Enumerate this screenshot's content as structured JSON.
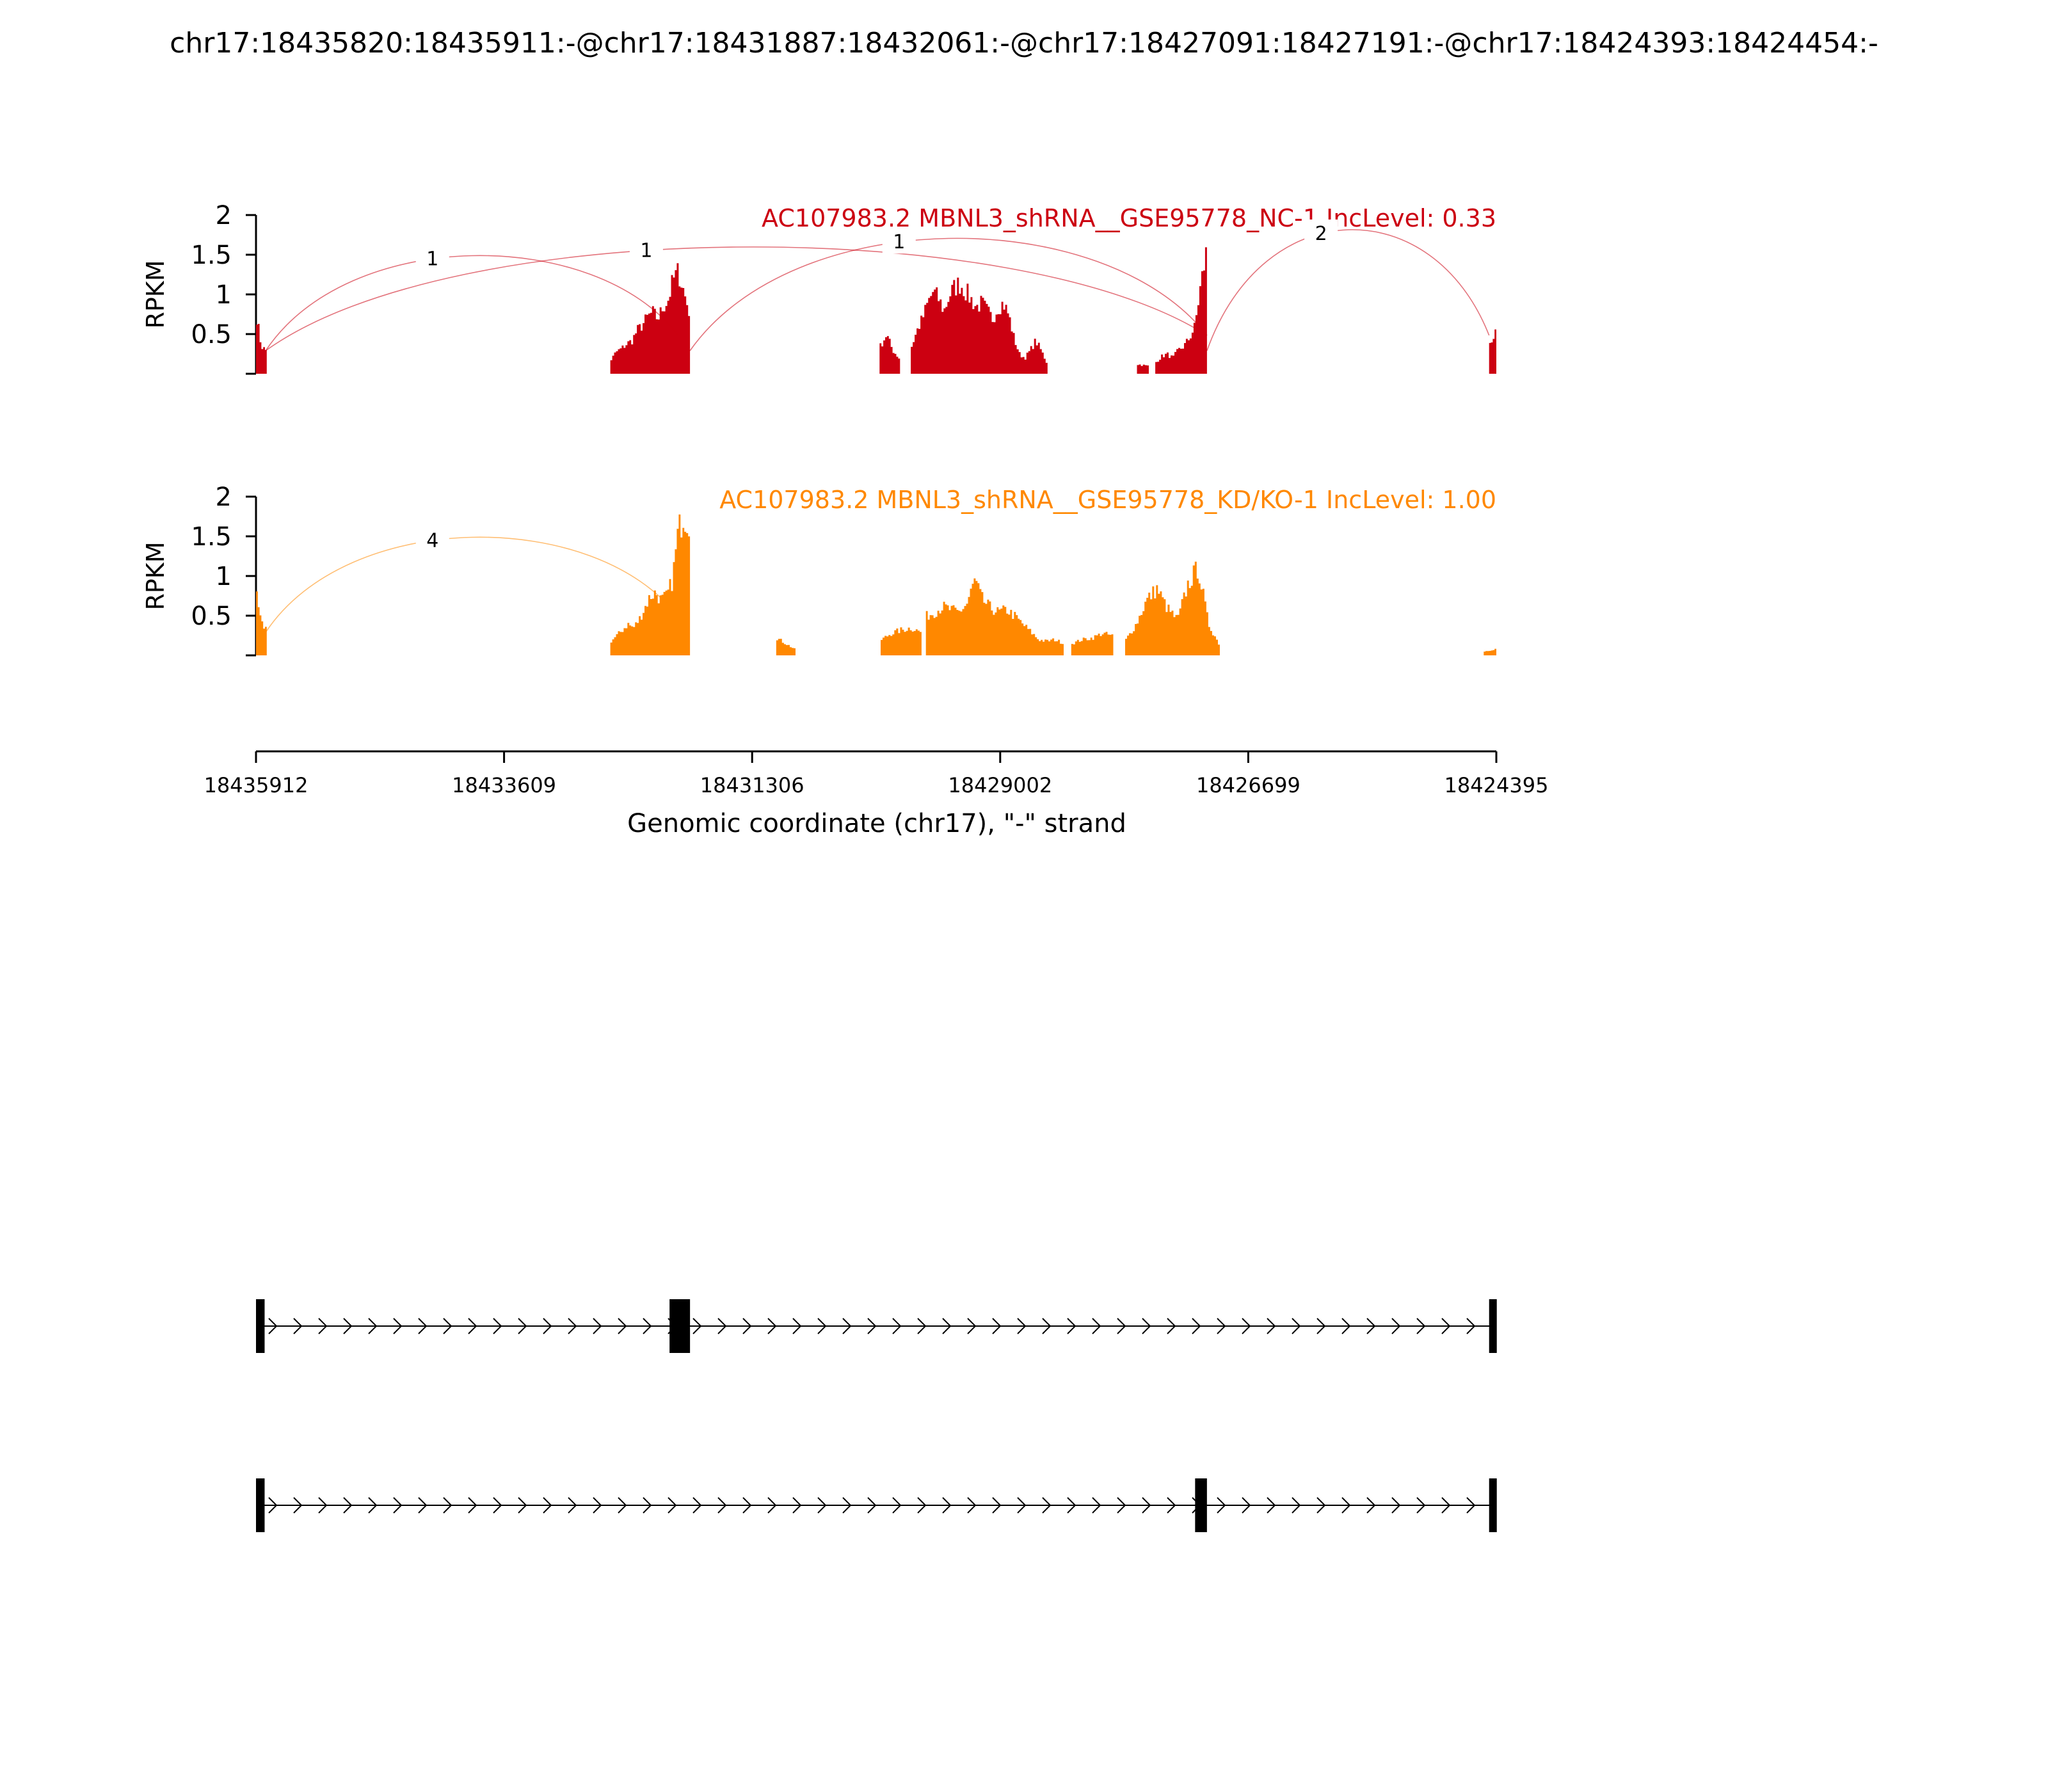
{
  "title": "chr17:18435820:18435911:-@chr17:18431887:18432061:-@chr17:18427091:18427191:-@chr17:18424393:18424454:-",
  "chart_data": {
    "type": "sashimi",
    "x_axis": {
      "label": "Genomic coordinate (chr17), \"-\" strand",
      "start": 18435912,
      "end": 18424395,
      "tick_labels": [
        "18435912",
        "18433609",
        "18431306",
        "18429002",
        "18426699",
        "18424395"
      ]
    },
    "tracks": [
      {
        "name": "AC107983.2 MBNL3_shRNA__GSE95778_NC-1 IncLevel: 0.33",
        "color": "#cc0011",
        "ylabel": "RPKM",
        "ylim": [
          0,
          2
        ],
        "y_tick_labels": [
          "0.5",
          "1",
          "1.5",
          "2"
        ],
        "coverage": [
          {
            "start": 0,
            "end": 100,
            "profile": [
              0.72,
              0.35,
              0.3
            ]
          },
          {
            "start": 3290,
            "end": 4030,
            "profile": [
              0.18,
              0.28,
              0.32,
              0.38,
              0.42,
              0.55,
              0.62,
              0.72,
              0.78,
              0.7,
              0.85,
              0.95,
              1.2,
              1.3,
              1.05,
              0.8
            ]
          },
          {
            "start": 5790,
            "end": 5980,
            "profile": [
              0.35,
              0.5,
              0.3,
              0.2
            ]
          },
          {
            "start": 6080,
            "end": 7350,
            "profile": [
              0.35,
              0.55,
              0.7,
              0.9,
              1.05,
              0.95,
              0.8,
              1.0,
              1.1,
              1.15,
              1.05,
              0.95,
              0.85,
              0.9,
              0.8,
              0.7,
              0.85,
              0.9,
              0.75,
              0.45,
              0.25,
              0.2,
              0.3,
              0.42,
              0.3,
              0.15
            ]
          },
          {
            "start": 8180,
            "end": 8290,
            "profile": [
              0.12,
              0.1
            ]
          },
          {
            "start": 8350,
            "end": 8830,
            "profile": [
              0.15,
              0.22,
              0.25,
              0.2,
              0.3,
              0.35,
              0.45,
              0.6,
              1.1,
              1.52
            ]
          },
          {
            "start": 11450,
            "end": 11517,
            "profile": [
              0.4,
              0.5
            ]
          }
        ],
        "junctions": [
          {
            "from": 90,
            "to": 3920,
            "count": "1"
          },
          {
            "from": 90,
            "to": 8830,
            "count": "1"
          },
          {
            "from": 4030,
            "to": 8830,
            "count": "1"
          },
          {
            "from": 8830,
            "to": 11450,
            "count": "2"
          }
        ]
      },
      {
        "name": "AC107983.2 MBNL3_shRNA__GSE95778_KD/KO-1 IncLevel: 1.00",
        "color": "#ff8800",
        "ylabel": "RPKM",
        "ylim": [
          0,
          2
        ],
        "y_tick_labels": [
          "0.5",
          "1",
          "1.5",
          "2"
        ],
        "coverage": [
          {
            "start": 0,
            "end": 100,
            "profile": [
              0.72,
              0.4,
              0.35
            ]
          },
          {
            "start": 3290,
            "end": 4030,
            "profile": [
              0.18,
              0.25,
              0.32,
              0.4,
              0.35,
              0.45,
              0.6,
              0.75,
              0.8,
              0.7,
              0.75,
              0.95,
              1.55,
              1.8,
              1.7
            ]
          },
          {
            "start": 4830,
            "end": 5010,
            "profile": [
              0.22,
              0.15,
              0.08
            ]
          },
          {
            "start": 5800,
            "end": 6180,
            "profile": [
              0.2,
              0.28,
              0.32,
              0.35,
              0.3
            ]
          },
          {
            "start": 6220,
            "end": 7500,
            "profile": [
              0.5,
              0.55,
              0.62,
              0.58,
              0.55,
              0.65,
              0.95,
              0.7,
              0.6,
              0.55,
              0.58,
              0.5,
              0.4,
              0.3,
              0.2,
              0.18,
              0.2,
              0.16
            ]
          },
          {
            "start": 7570,
            "end": 7960,
            "profile": [
              0.15,
              0.2,
              0.22,
              0.28,
              0.25
            ]
          },
          {
            "start": 8070,
            "end": 8950,
            "profile": [
              0.2,
              0.4,
              0.7,
              0.85,
              0.6,
              0.45,
              0.9,
              1.12,
              0.4,
              0.15
            ]
          },
          {
            "start": 11400,
            "end": 11517,
            "profile": [
              0.05,
              0.08
            ]
          }
        ],
        "junctions": [
          {
            "from": 90,
            "to": 3920,
            "count": "4"
          }
        ]
      }
    ],
    "transcripts": [
      {
        "exons": [
          [
            0,
            80
          ],
          [
            3840,
            4030
          ],
          [
            11450,
            11517
          ]
        ],
        "strand": "-"
      },
      {
        "exons": [
          [
            0,
            80
          ],
          [
            8720,
            8830
          ],
          [
            11450,
            11517
          ]
        ],
        "strand": "-"
      }
    ]
  }
}
